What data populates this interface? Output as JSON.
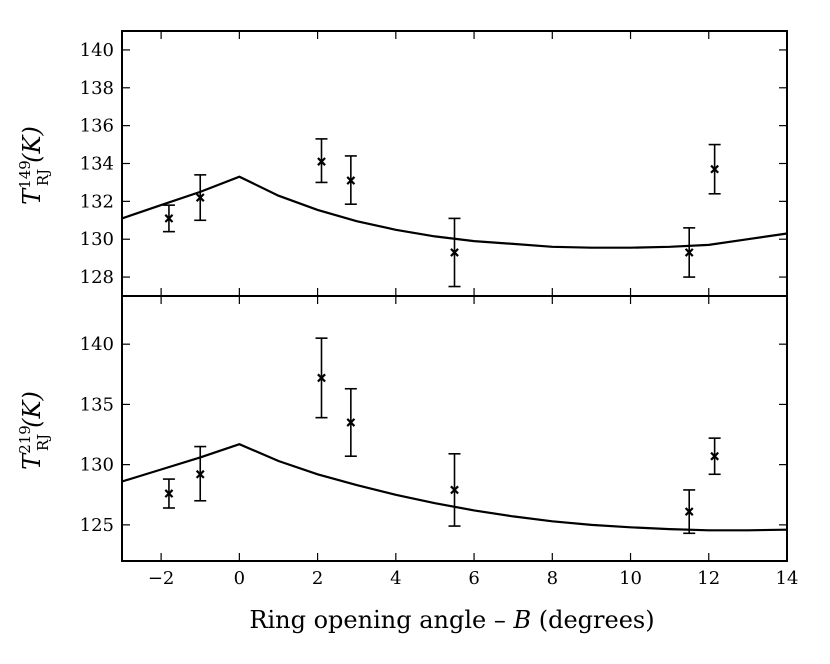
{
  "chart_data": {
    "type": "scatter",
    "xlabel_prefix": "Ring opening angle – ",
    "xlabel_var": "B",
    "xlabel_suffix": " (degrees)",
    "xlim": [
      -3,
      14
    ],
    "xticks": [
      -2,
      0,
      2,
      4,
      6,
      8,
      10,
      12,
      14
    ],
    "panels": [
      {
        "ylabel_base": "T",
        "ylabel_sub": "RJ",
        "ylabel_sup": "149",
        "ylabel_arg": "(K)",
        "ylim": [
          127,
          141
        ],
        "yticks": [
          128,
          130,
          132,
          134,
          136,
          138,
          140
        ],
        "points": [
          {
            "x": -1.8,
            "y": 131.1,
            "err_low": 0.7,
            "err_high": 0.7
          },
          {
            "x": -1.0,
            "y": 132.2,
            "err_low": 1.2,
            "err_high": 1.2
          },
          {
            "x": 2.1,
            "y": 134.1,
            "err_low": 1.1,
            "err_high": 1.2
          },
          {
            "x": 2.85,
            "y": 133.1,
            "err_low": 1.25,
            "err_high": 1.3
          },
          {
            "x": 5.5,
            "y": 129.3,
            "err_low": 1.8,
            "err_high": 1.8
          },
          {
            "x": 11.5,
            "y": 129.3,
            "err_low": 1.3,
            "err_high": 1.3
          },
          {
            "x": 12.15,
            "y": 133.7,
            "err_low": 1.3,
            "err_high": 1.3
          }
        ],
        "model": {
          "x": [
            -3,
            -2,
            -1,
            0,
            1,
            2,
            3,
            4,
            5,
            6,
            7,
            8,
            9,
            10,
            11,
            12,
            13,
            14
          ],
          "y": [
            131.1,
            131.8,
            132.5,
            133.3,
            132.3,
            131.55,
            130.95,
            130.5,
            130.15,
            129.9,
            129.75,
            129.6,
            129.55,
            129.55,
            129.6,
            129.7,
            130.0,
            130.3
          ]
        }
      },
      {
        "ylabel_base": "T",
        "ylabel_sub": "RJ",
        "ylabel_sup": "219",
        "ylabel_arg": "(K)",
        "ylim": [
          122,
          144
        ],
        "yticks": [
          125,
          130,
          135,
          140
        ],
        "points": [
          {
            "x": -1.8,
            "y": 127.6,
            "err_low": 1.2,
            "err_high": 1.2
          },
          {
            "x": -1.0,
            "y": 129.2,
            "err_low": 2.2,
            "err_high": 2.3
          },
          {
            "x": 2.1,
            "y": 137.2,
            "err_low": 3.3,
            "err_high": 3.3
          },
          {
            "x": 2.85,
            "y": 133.5,
            "err_low": 2.8,
            "err_high": 2.8
          },
          {
            "x": 5.5,
            "y": 127.9,
            "err_low": 3.0,
            "err_high": 3.0
          },
          {
            "x": 11.5,
            "y": 126.1,
            "err_low": 1.8,
            "err_high": 1.8
          },
          {
            "x": 12.15,
            "y": 130.7,
            "err_low": 1.5,
            "err_high": 1.5
          }
        ],
        "model": {
          "x": [
            -3,
            -2,
            -1,
            0,
            1,
            2,
            3,
            4,
            5,
            6,
            7,
            8,
            9,
            10,
            11,
            12,
            13,
            14
          ],
          "y": [
            128.6,
            129.6,
            130.6,
            131.7,
            130.3,
            129.2,
            128.3,
            127.5,
            126.8,
            126.2,
            125.7,
            125.3,
            125.0,
            124.8,
            124.65,
            124.55,
            124.55,
            124.6
          ]
        }
      }
    ]
  }
}
